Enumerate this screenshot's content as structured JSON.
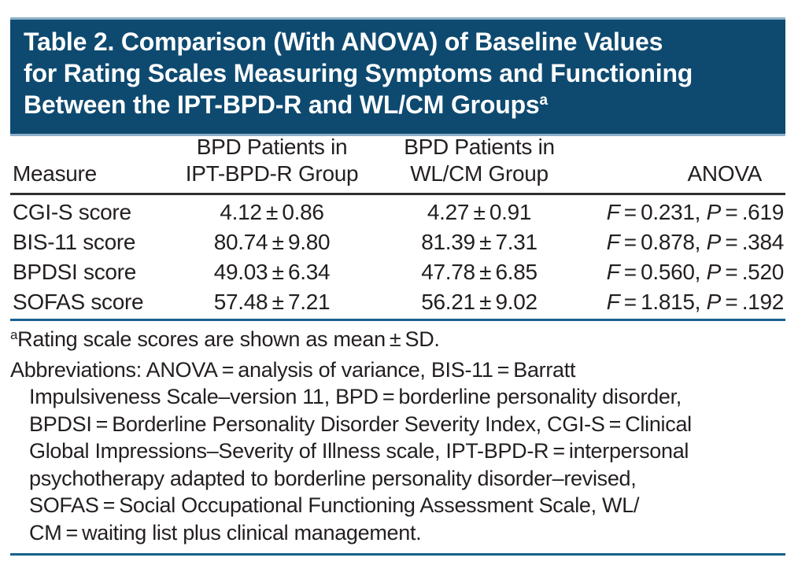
{
  "title": {
    "line1": "Table 2. Comparison (With ANOVA) of Baseline Values",
    "line2": "for Rating Scales Measuring Symptoms and Functioning",
    "line3": "Between the IPT-BPD-R and WL/CM Groups",
    "superscript": "a"
  },
  "columns": {
    "measure": "Measure",
    "ipt_line1": "BPD Patients in",
    "ipt_line2": "IPT-BPD-R Group",
    "wl_line1": "BPD Patients in",
    "wl_line2": "WL/CM Group",
    "anova": "ANOVA"
  },
  "rows": [
    {
      "measure": "CGI-S score",
      "ipt": "4.12 ± 0.86",
      "wl": "4.27 ± 0.91",
      "anova": {
        "f_label": "F",
        "f_rest": " = 0.231, ",
        "p_label": "P",
        "p_rest": " = .619"
      }
    },
    {
      "measure": "BIS-11 score",
      "ipt": "80.74 ± 9.80",
      "wl": "81.39 ± 7.31",
      "anova": {
        "f_label": "F",
        "f_rest": " = 0.878, ",
        "p_label": "P",
        "p_rest": " = .384"
      }
    },
    {
      "measure": "BPDSI score",
      "ipt": "49.03 ± 6.34",
      "wl": "47.78 ± 6.85",
      "anova": {
        "f_label": "F",
        "f_rest": " = 0.560, ",
        "p_label": "P",
        "p_rest": " = .520"
      }
    },
    {
      "measure": "SOFAS score",
      "ipt": "57.48 ± 7.21",
      "wl": "56.21 ± 9.02",
      "anova": {
        "f_label": "F",
        "f_rest": " = 1.815, ",
        "p_label": "P",
        "p_rest": " = .192"
      }
    }
  ],
  "footnotes": {
    "marker": "a",
    "note": "Rating scale scores are shown as mean ± SD.",
    "abbr_lines": [
      "Abbreviations: ANOVA = analysis of variance, BIS-11 = Barratt",
      "Impulsiveness Scale–version 11, BPD = borderline personality disorder,",
      "BPDSI = Borderline Personality Disorder Severity Index, CGI-S = Clinical",
      "Global Impressions–Severity of Illness scale, IPT-BPD-R = interpersonal",
      "psychotherapy adapted to borderline personality disorder–revised,",
      "SOFAS = Social Occupational Functioning Assessment Scale, WL/",
      "CM = waiting list plus clinical management."
    ]
  },
  "colors": {
    "banner_background": "#0e4a70",
    "banner_border": "#8fb0c9",
    "header_rule": "#2f2f2f",
    "blue_rule": "#16618c",
    "text": "#231f20",
    "title_text": "#ffffff"
  }
}
